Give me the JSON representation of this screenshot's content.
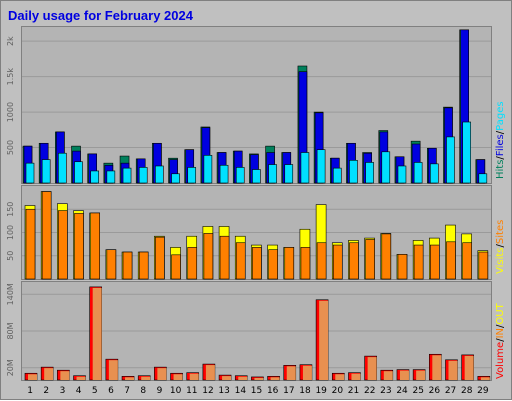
{
  "title": "Daily usage for February 2024",
  "colors": {
    "background": "#c0c0c0",
    "panel": "#b4b4b4",
    "hits": "#00805c",
    "files": "#0000e0",
    "pages": "#00e0ff",
    "visits": "#ffff00",
    "sites": "#ff8000",
    "kbytes": "#ff0000",
    "kbytes_fill": "#e89050"
  },
  "chart_data": [
    {
      "type": "bar",
      "title": "Daily usage for February 2024",
      "categories": [
        "1",
        "2",
        "3",
        "4",
        "5",
        "6",
        "7",
        "8",
        "9",
        "10",
        "11",
        "12",
        "13",
        "14",
        "15",
        "16",
        "17",
        "18",
        "19",
        "20",
        "21",
        "22",
        "23",
        "24",
        "25",
        "26",
        "27",
        "28",
        "29"
      ],
      "weekend_categories": [
        "3",
        "4",
        "10",
        "11",
        "17",
        "18",
        "24",
        "25"
      ],
      "ylim": [
        0,
        2200
      ],
      "yticks": [
        {
          "value": 500,
          "label": "500"
        },
        {
          "value": 1000,
          "label": "1000"
        },
        {
          "value": 1500,
          "label": "1.5k"
        },
        {
          "value": 2000,
          "label": "2k"
        }
      ],
      "legend": "right",
      "legend_labels": [
        "Hits",
        "/",
        "Files",
        "/",
        "Pages"
      ],
      "series": [
        {
          "name": "Hits",
          "color": "#00805c",
          "values": [
            520,
            560,
            720,
            520,
            410,
            280,
            380,
            340,
            560,
            350,
            470,
            790,
            430,
            450,
            410,
            520,
            430,
            1650,
            1000,
            350,
            560,
            430,
            740,
            370,
            590,
            490,
            1070,
            2160,
            330
          ]
        },
        {
          "name": "Files",
          "color": "#0000e0",
          "values": [
            520,
            560,
            720,
            450,
            410,
            250,
            280,
            340,
            560,
            330,
            470,
            780,
            430,
            450,
            400,
            430,
            430,
            1570,
            990,
            350,
            560,
            420,
            720,
            370,
            550,
            490,
            1060,
            2160,
            330
          ]
        },
        {
          "name": "Pages",
          "color": "#00e0ff",
          "values": [
            280,
            330,
            420,
            300,
            170,
            170,
            210,
            220,
            240,
            130,
            220,
            390,
            250,
            220,
            190,
            260,
            260,
            430,
            470,
            210,
            320,
            290,
            440,
            240,
            290,
            270,
            650,
            860,
            130
          ]
        }
      ]
    },
    {
      "type": "bar",
      "categories": [
        "1",
        "2",
        "3",
        "4",
        "5",
        "6",
        "7",
        "8",
        "9",
        "10",
        "11",
        "12",
        "13",
        "14",
        "15",
        "16",
        "17",
        "18",
        "19",
        "20",
        "21",
        "22",
        "23",
        "24",
        "25",
        "26",
        "27",
        "28",
        "29"
      ],
      "ylim": [
        0,
        200
      ],
      "yticks": [
        {
          "value": 50,
          "label": "50"
        },
        {
          "value": 100,
          "label": "100"
        },
        {
          "value": 150,
          "label": "150"
        }
      ],
      "legend": "right",
      "legend_labels": [
        "Visits",
        "/",
        "Sites"
      ],
      "series": [
        {
          "name": "Visits",
          "color": "#ffff00",
          "values": [
            158,
            188,
            162,
            147,
            142,
            63,
            58,
            58,
            92,
            68,
            92,
            113,
            113,
            92,
            73,
            73,
            68,
            107,
            160,
            78,
            83,
            88,
            98,
            53,
            83,
            88,
            116,
            97,
            61
          ]
        },
        {
          "name": "Sites",
          "color": "#ff8000",
          "values": [
            150,
            188,
            147,
            141,
            142,
            63,
            58,
            58,
            90,
            52,
            68,
            98,
            92,
            78,
            68,
            63,
            68,
            68,
            78,
            73,
            78,
            85,
            97,
            53,
            73,
            73,
            80,
            78,
            58
          ]
        }
      ]
    },
    {
      "type": "bar",
      "categories": [
        "1",
        "2",
        "3",
        "4",
        "5",
        "6",
        "7",
        "8",
        "9",
        "10",
        "11",
        "12",
        "13",
        "14",
        "15",
        "16",
        "17",
        "18",
        "19",
        "20",
        "21",
        "22",
        "23",
        "24",
        "25",
        "26",
        "27",
        "28",
        "29"
      ],
      "ylim": [
        0,
        160
      ],
      "yticks": [
        {
          "value": 20,
          "label": "20M"
        },
        {
          "value": 80,
          "label": "80M"
        },
        {
          "value": 140,
          "label": "140M"
        }
      ],
      "legend": "right",
      "legend_labels": [
        "Volume",
        "/",
        "IN",
        "/",
        "OUT"
      ],
      "series": [
        {
          "name": "Volume",
          "unit": "MB",
          "color": "#ff0000",
          "values": [
            11,
            21,
            16,
            7,
            152,
            34,
            6,
            7,
            21,
            11,
            12,
            26,
            8,
            7,
            5,
            6,
            24,
            25,
            131,
            11,
            12,
            39,
            16,
            17,
            17,
            42,
            33,
            41,
            6
          ]
        }
      ]
    }
  ],
  "legend_text": {
    "top": [
      {
        "text": "Hits",
        "color": "#00805c"
      },
      {
        "text": "/",
        "color": "#000000"
      },
      {
        "text": "Files",
        "color": "#0000e0"
      },
      {
        "text": "/",
        "color": "#000000"
      },
      {
        "text": "Pages",
        "color": "#00e0ff"
      }
    ],
    "middle": [
      {
        "text": "Visits",
        "color": "#ffff00"
      },
      {
        "text": "/",
        "color": "#000000"
      },
      {
        "text": "Sites",
        "color": "#ff8000"
      }
    ],
    "bottom": [
      {
        "text": "Volume",
        "color": "#ff0000"
      },
      {
        "text": "/",
        "color": "#000000"
      },
      {
        "text": "IN",
        "color": "#ff8000"
      },
      {
        "text": "/",
        "color": "#000000"
      },
      {
        "text": "OUT",
        "color": "#ffff00"
      }
    ]
  }
}
